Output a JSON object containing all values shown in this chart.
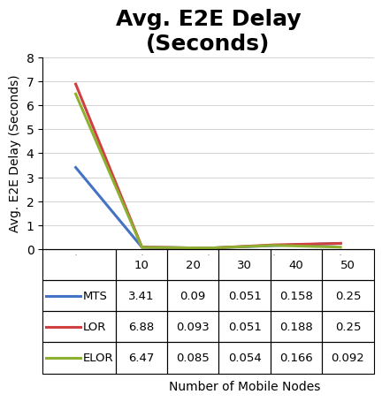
{
  "title": "Avg. E2E Delay\n(Seconds)",
  "xlabel": "Number of Mobile Nodes",
  "ylabel": "Avg. E2E Delay (Seconds)",
  "x": [
    10,
    20,
    30,
    40,
    50
  ],
  "series": [
    {
      "label": "MTS",
      "color": "#4472C4",
      "values": [
        3.41,
        0.09,
        0.051,
        0.158,
        0.25
      ]
    },
    {
      "label": "LOR",
      "color": "#D04040",
      "values": [
        6.88,
        0.093,
        0.051,
        0.188,
        0.25
      ]
    },
    {
      "label": "ELOR",
      "color": "#8DB030",
      "values": [
        6.47,
        0.085,
        0.054,
        0.166,
        0.092
      ]
    }
  ],
  "ylim": [
    0,
    8
  ],
  "yticks": [
    0,
    1,
    2,
    3,
    4,
    5,
    6,
    7,
    8
  ],
  "xticks": [
    10,
    20,
    30,
    40,
    50
  ],
  "table_rows": [
    [
      "MTS",
      "3.41",
      "0.09",
      "0.051",
      "0.158",
      "0.25"
    ],
    [
      "LOR",
      "6.88",
      "0.093",
      "0.051",
      "0.188",
      "0.25"
    ],
    [
      "ELOR",
      "6.47",
      "0.085",
      "0.054",
      "0.166",
      "0.092"
    ]
  ],
  "table_header": [
    "",
    "10",
    "20",
    "30",
    "40",
    "50"
  ],
  "line_width": 2.2,
  "background_color": "#FFFFFF",
  "title_fontsize": 18,
  "axis_label_fontsize": 10,
  "tick_fontsize": 10,
  "table_fontsize": 9.5
}
